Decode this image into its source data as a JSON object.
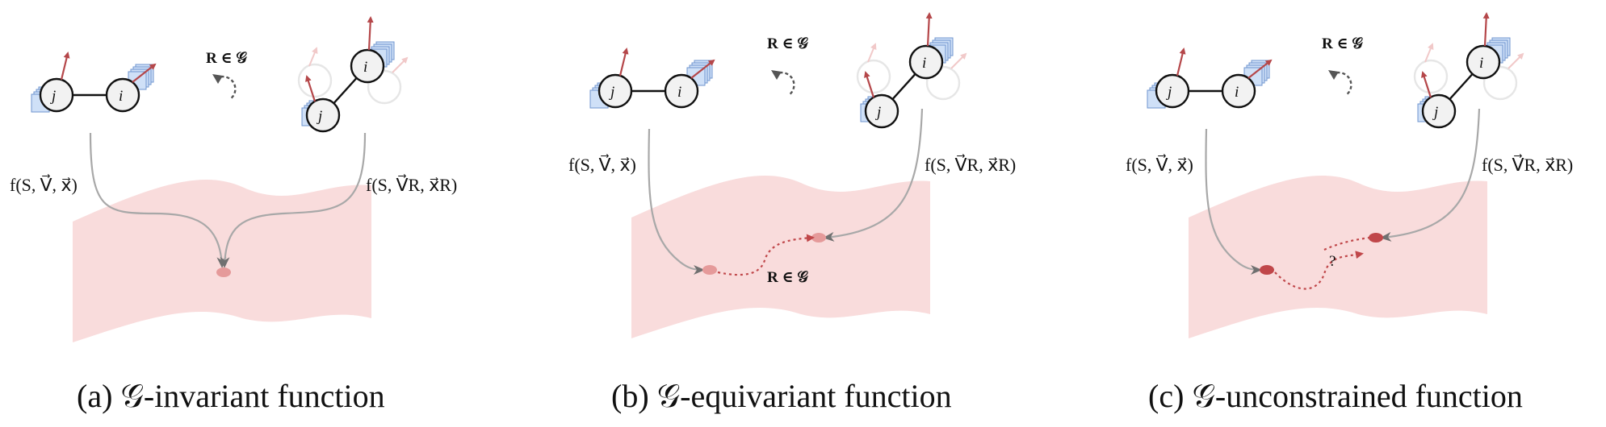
{
  "panels": [
    {
      "caption": "(a) 𝒢-invariant function",
      "rotation_label": "R ∈ 𝒢",
      "left_map_label": "f(S, V⃗, x⃗)",
      "right_map_label": "f(S, V⃗R, x⃗R)",
      "node_left": "j",
      "node_right": "i",
      "rotated_node_top": "i",
      "rotated_node_bottom": "j",
      "manifold_annotation": ""
    },
    {
      "caption": "(b) 𝒢-equivariant function",
      "rotation_label": "R ∈ 𝒢",
      "left_map_label": "f(S, V⃗, x⃗)",
      "right_map_label": "f(S, V⃗R, x⃗R)",
      "node_left": "j",
      "node_right": "i",
      "rotated_node_top": "i",
      "rotated_node_bottom": "j",
      "manifold_annotation": "R ∈ 𝒢"
    },
    {
      "caption": "(c) 𝒢-unconstrained function",
      "rotation_label": "R ∈ 𝒢",
      "left_map_label": "f(S, V⃗, x⃗)",
      "right_map_label": "f(S, V⃗R, x⃗R)",
      "node_left": "j",
      "node_right": "i",
      "rotated_node_top": "i",
      "rotated_node_bottom": "j",
      "manifold_annotation": "?"
    }
  ],
  "colors": {
    "manifold": "#f9dcdc",
    "arrow_red": "#b5474a",
    "curve_gray": "#a8a8a8",
    "feature_blue": "#cfe0f7",
    "point_invariant": "#e59a9a",
    "point_unconstrained": "#c0474a"
  }
}
